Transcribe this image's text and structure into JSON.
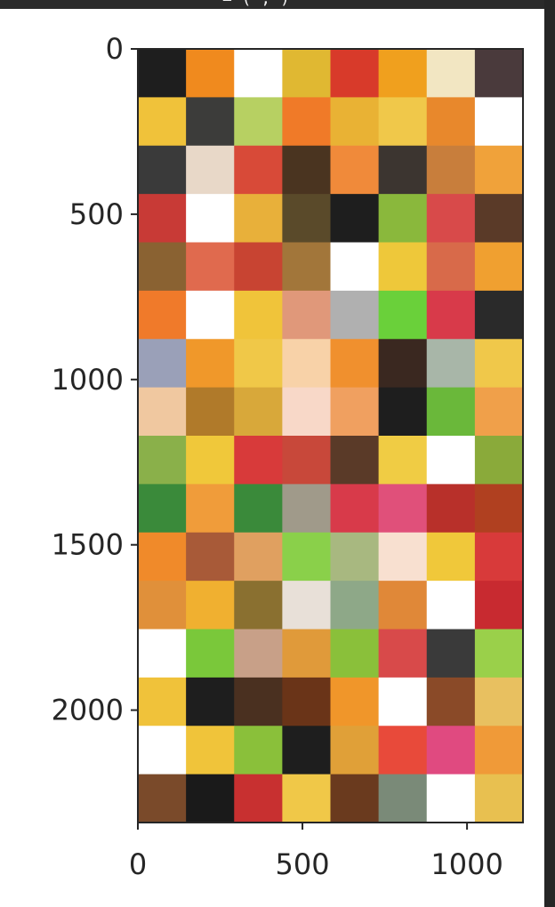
{
  "header": {
    "fragment": "= (   ,   )"
  },
  "chart_data": {
    "type": "image",
    "grid": {
      "rows": 16,
      "cols": 8
    },
    "xlim": [
      0,
      1170
    ],
    "ylim": [
      2340,
      0
    ],
    "x_ticks": [
      0,
      500,
      1000
    ],
    "y_ticks": [
      0,
      500,
      1000,
      1500,
      2000
    ],
    "grid_lines": false,
    "tile_colors": [
      [
        "#1e1e1e",
        "#f08a1e",
        "#ffffff",
        "#e0b832",
        "#d83a2a",
        "#f0a01e",
        "#f2e6c2",
        "#4a3a3c"
      ],
      [
        "#f0c23a",
        "#3c3c3a",
        "#b7d062",
        "#f07a28",
        "#e9b234",
        "#f0c84a",
        "#e8882c",
        "#ffffff"
      ],
      [
        "#3a3a3a",
        "#e8d8c8",
        "#d84a38",
        "#4a3420",
        "#f08a3a",
        "#3c3530",
        "#c87e3c",
        "#f0a23a"
      ],
      [
        "#c83a36",
        "#ffffff",
        "#e8b03a",
        "#5a4a2a",
        "#1e1e1e",
        "#8ab83c",
        "#d84a4a",
        "#5a3a28"
      ],
      [
        "#8a6232",
        "#e06a4e",
        "#c84432",
        "#a2763a",
        "#ffffff",
        "#eec83a",
        "#d86a4a",
        "#f0a030"
      ],
      [
        "#f07a2a",
        "#ffffff",
        "#f0c43a",
        "#e0987a",
        "#b0b0b0",
        "#6ad03a",
        "#d83a4a",
        "#2a2a2a"
      ],
      [
        "#9aa0b8",
        "#f0982a",
        "#f0c848",
        "#f8d2a8",
        "#f0902e",
        "#3a2820",
        "#a8b6a8",
        "#f0c84a"
      ],
      [
        "#f0c8a0",
        "#b07a2a",
        "#d8a83a",
        "#f8d8c8",
        "#f0a060",
        "#1e1e1e",
        "#6ab83a",
        "#f0a04a"
      ],
      [
        "#8ab04a",
        "#f0c83a",
        "#d83a3a",
        "#c8483a",
        "#5a3a28",
        "#f0cc44",
        "#ffffff",
        "#8aaa3a"
      ],
      [
        "#3a8a3a",
        "#f09c3a",
        "#3a8a3a",
        "#a09a8a",
        "#d83a4a",
        "#e0507a",
        "#b8302a",
        "#b04020"
      ],
      [
        "#f08a2a",
        "#a85a38",
        "#e0a060",
        "#8ad04a",
        "#a8b880",
        "#f8e0d0",
        "#f0c83a",
        "#d83a3a"
      ],
      [
        "#e0903a",
        "#f0b030",
        "#8a7030",
        "#e8e0d8",
        "#8ea888",
        "#e08838",
        "#ffffff",
        "#c82a30"
      ],
      [
        "#ffffff",
        "#7ac83a",
        "#c8a088",
        "#e09a3a",
        "#8ac03a",
        "#d84a4a",
        "#3a3a3a",
        "#9ad04a"
      ],
      [
        "#f0c23a",
        "#1e1e1e",
        "#4a3020",
        "#6a3418",
        "#f0962a",
        "#ffffff",
        "#8a4a28",
        "#e8c060"
      ],
      [
        "#ffffff",
        "#f0c43a",
        "#8ac03a",
        "#1e1e1e",
        "#e0a038",
        "#e84a3a",
        "#e04a80",
        "#f09a38"
      ],
      [
        "#7a4a2a",
        "#1a1a1a",
        "#c83030",
        "#f0c848",
        "#6a3a1e",
        "#7a8a78",
        "#ffffff",
        "#e8c050"
      ]
    ]
  }
}
